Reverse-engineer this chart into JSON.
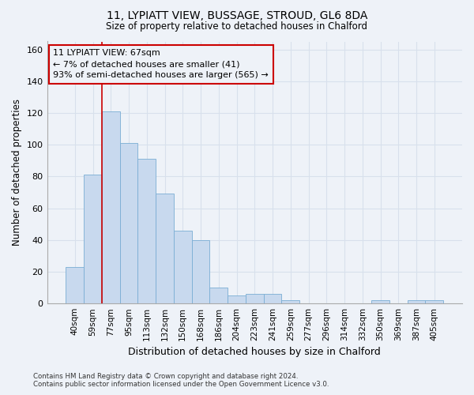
{
  "title_line1": "11, LYPIATT VIEW, BUSSAGE, STROUD, GL6 8DA",
  "title_line2": "Size of property relative to detached houses in Chalford",
  "xlabel": "Distribution of detached houses by size in Chalford",
  "ylabel": "Number of detached properties",
  "bar_color": "#c8d9ee",
  "bar_edge_color": "#7aadd4",
  "categories": [
    "40sqm",
    "59sqm",
    "77sqm",
    "95sqm",
    "113sqm",
    "132sqm",
    "150sqm",
    "168sqm",
    "186sqm",
    "204sqm",
    "223sqm",
    "241sqm",
    "259sqm",
    "277sqm",
    "296sqm",
    "314sqm",
    "332sqm",
    "350sqm",
    "369sqm",
    "387sqm",
    "405sqm"
  ],
  "values": [
    23,
    81,
    121,
    101,
    91,
    69,
    46,
    40,
    10,
    5,
    6,
    6,
    2,
    0,
    0,
    0,
    0,
    2,
    0,
    2,
    2
  ],
  "vline_position": 1.5,
  "vline_color": "#cc0000",
  "annotation_text": "11 LYPIATT VIEW: 67sqm\n← 7% of detached houses are smaller (41)\n93% of semi-detached houses are larger (565) →",
  "annotation_box_edgecolor": "#cc0000",
  "ylim": [
    0,
    165
  ],
  "yticks": [
    0,
    20,
    40,
    60,
    80,
    100,
    120,
    140,
    160
  ],
  "footnote1": "Contains HM Land Registry data © Crown copyright and database right 2024.",
  "footnote2": "Contains public sector information licensed under the Open Government Licence v3.0.",
  "background_color": "#eef2f8",
  "grid_color": "#d8e0ec"
}
